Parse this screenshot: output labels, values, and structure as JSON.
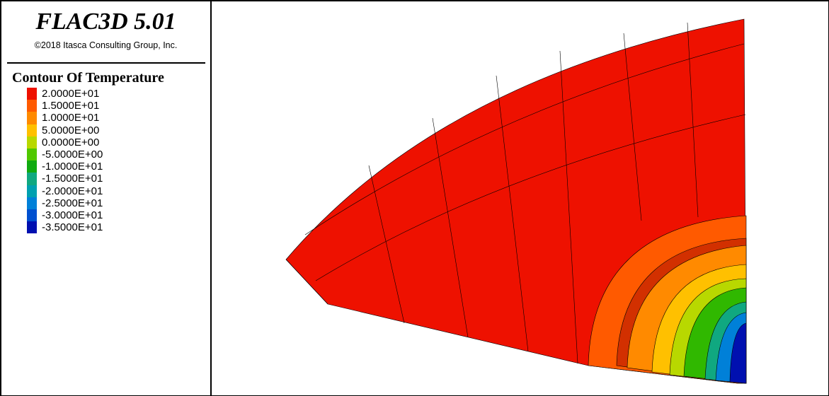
{
  "header": {
    "title": "FLAC3D 5.01",
    "copyright": "©2018 Itasca Consulting Group, Inc."
  },
  "legend": {
    "title": "Contour Of Temperature",
    "entries": [
      {
        "label": "2.0000E+01",
        "color": "#ee1100"
      },
      {
        "label": "1.5000E+01",
        "color": "#ff5a00"
      },
      {
        "label": "1.0000E+01",
        "color": "#ff8a00"
      },
      {
        "label": "5.0000E+00",
        "color": "#ffc000"
      },
      {
        "label": "0.0000E+00",
        "color": "#b8d800"
      },
      {
        "label": "-5.0000E+00",
        "color": "#50c800"
      },
      {
        "label": "-1.0000E+01",
        "color": "#10aa10"
      },
      {
        "label": "-1.5000E+01",
        "color": "#10a880"
      },
      {
        "label": "-2.0000E+01",
        "color": "#00a0b0"
      },
      {
        "label": "-2.5000E+01",
        "color": "#0080d8"
      },
      {
        "label": "-3.0000E+01",
        "color": "#0050d0"
      },
      {
        "label": "-3.5000E+01",
        "color": "#0010b0"
      }
    ]
  }
}
